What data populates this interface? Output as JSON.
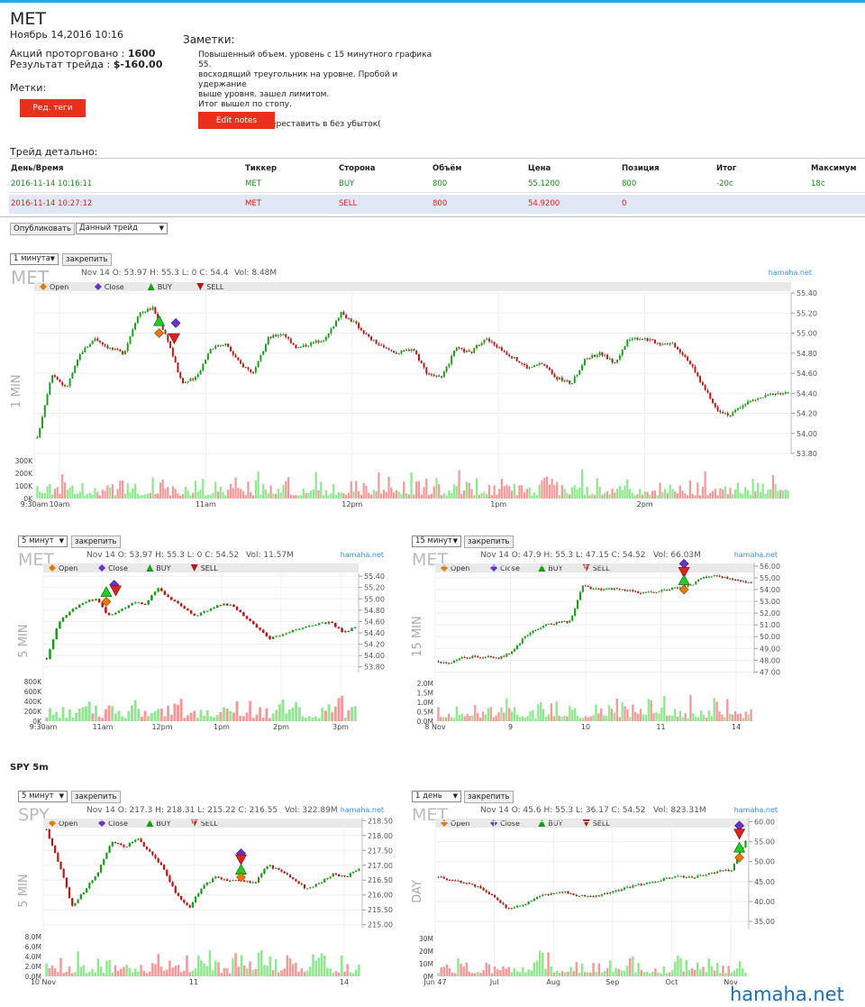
{
  "header": {
    "ticker": "MET",
    "date": "Ноябрь 14,2016 10:16",
    "shares_label": "Акций проторговано :",
    "shares_value": "1600",
    "result_label": "Результат трейда :",
    "result_value": "$-160.00",
    "tags_label": "Метки:",
    "tags_button": "Ред. теги"
  },
  "notes": {
    "title": "Заметки:",
    "lines": [
      "Повышенный объем. уровень с 15 минутного графика 55.",
      "восходящий треугольник на уровне. Пробой и удержание",
      "выше уровня. зашел лимитом.",
      "Итог вышел по стопу.",
      "",
      "Ошибка: забыл переставить в без убыток("
    ],
    "edit_button": "Edit notes"
  },
  "trade_detail": {
    "title": "Трейд детально:",
    "columns": [
      "День/Время",
      "Тиккер",
      "Сторона",
      "Объём",
      "Цена",
      "Позиция",
      "Итог",
      "Максимум"
    ],
    "rows": [
      [
        "2016-11-14 10:16:11",
        "MET",
        "BUY",
        "800",
        "55.1200",
        "800",
        "-20c",
        "18c"
      ],
      [
        "2016-11-14 10:27:12",
        "MET",
        "SELL",
        "800",
        "54.9200",
        "0",
        "",
        ""
      ]
    ]
  },
  "controls": {
    "publish_button": "Опубликовать",
    "trade_select": "Данный трейд",
    "pin_button": "закрепить"
  },
  "section_spy": "SPY 5m",
  "watermark": "hamaha.net",
  "colors": {
    "up": "#1a9b1a",
    "down": "#b51616",
    "vol_up": "#8fe88f",
    "vol_down": "#f29a9a",
    "buy_row": "#1a8a1a",
    "sell_row": "#e02020",
    "sell_bg": "#dfe8f4"
  },
  "chart_data": [
    {
      "type": "candlestick",
      "ticker": "MET",
      "timeframe_select": "1 минута",
      "side_label": "1 MIN",
      "ohlc_text": "Nov 14 O: 53.97 H: 55.3 L: 0 C: 54.4",
      "vol_text": "Vol: 8.48M",
      "source": "hamaha.net",
      "legend": [
        "Open",
        "Close",
        "BUY",
        "SELL"
      ],
      "y_ticks": [
        "55.40",
        "55.20",
        "55.00",
        "54.80",
        "54.60",
        "54.40",
        "54.20",
        "54.00",
        "53.80"
      ],
      "ylim": [
        53.8,
        55.4
      ],
      "vol_ticks": [
        "300K",
        "200K",
        "100K",
        "0K"
      ],
      "x_ticks": [
        "9:30am",
        "10am",
        "11am",
        "12pm",
        "1pm",
        "2pm"
      ],
      "path": [
        53.95,
        54.6,
        54.45,
        54.8,
        54.95,
        54.85,
        54.8,
        55.2,
        55.25,
        54.95,
        54.5,
        54.55,
        54.85,
        54.9,
        54.7,
        54.6,
        54.95,
        55.0,
        54.85,
        54.9,
        54.95,
        55.2,
        55.1,
        54.95,
        54.85,
        54.8,
        54.85,
        54.6,
        54.55,
        54.85,
        54.8,
        54.95,
        54.85,
        54.75,
        54.65,
        54.7,
        54.55,
        54.5,
        54.75,
        54.8,
        54.7,
        54.95,
        54.95,
        54.9,
        54.9,
        54.75,
        54.5,
        54.25,
        54.18,
        54.3,
        54.35,
        54.4,
        54.4
      ],
      "markers": [
        {
          "type": "buy",
          "x": 0.165,
          "price": 55.12
        },
        {
          "type": "open",
          "x": 0.165,
          "price": 55.0
        },
        {
          "type": "close",
          "x": 0.187,
          "price": 55.1
        },
        {
          "type": "sell",
          "x": 0.185,
          "price": 54.95
        }
      ]
    },
    {
      "type": "candlestick",
      "ticker": "MET",
      "timeframe_select": "5 минут",
      "side_label": "5 MIN",
      "ohlc_text": "Nov 14 O: 53.97 H: 55.3 L: 0 C: 54.52",
      "vol_text": "Vol: 11.57M",
      "source": "hamaha.net",
      "legend": [
        "Open",
        "Close",
        "BUY",
        "SELL"
      ],
      "y_ticks": [
        "55.40",
        "55.20",
        "55.00",
        "54.80",
        "54.60",
        "54.40",
        "54.20",
        "54.00",
        "53.80"
      ],
      "ylim": [
        53.7,
        55.45
      ],
      "vol_ticks": [
        "800K",
        "600K",
        "400K",
        "200K",
        "0K"
      ],
      "x_ticks": [
        "9:30am",
        "11am",
        "12pm",
        "1pm",
        "2pm",
        "3pm"
      ],
      "path": [
        53.95,
        54.6,
        54.8,
        54.95,
        55.0,
        54.7,
        54.8,
        54.95,
        54.9,
        55.2,
        55.0,
        54.85,
        54.7,
        54.8,
        54.9,
        54.9,
        54.7,
        54.5,
        54.3,
        54.35,
        54.45,
        54.5,
        54.55,
        54.6,
        54.4,
        54.5
      ],
      "markers": [
        {
          "type": "buy",
          "x": 0.2,
          "price": 55.12
        },
        {
          "type": "open",
          "x": 0.2,
          "price": 54.95
        },
        {
          "type": "close",
          "x": 0.225,
          "price": 55.25
        },
        {
          "type": "sell",
          "x": 0.23,
          "price": 55.15
        }
      ]
    },
    {
      "type": "candlestick",
      "ticker": "MET",
      "timeframe_select": "15 минут",
      "side_label": "15 MIN",
      "ohlc_text": "Nov 14 O: 47.9 H: 55.3 L: 47.15 C: 54.52",
      "vol_text": "Vol: 66.03M",
      "source": "hamaha.net",
      "legend": [
        "Open",
        "Close",
        "BUY",
        "SELL"
      ],
      "y_ticks": [
        "56.00",
        "55.00",
        "54.00",
        "53.00",
        "52.00",
        "51.00",
        "50.00",
        "49.00",
        "48.00",
        "47.00"
      ],
      "ylim": [
        46.8,
        56.3
      ],
      "vol_ticks": [
        "2.0M",
        "1.5M",
        "1.0M",
        "0.5M",
        "0.0M"
      ],
      "x_ticks": [
        "8 Nov",
        "9",
        "10",
        "11",
        "14"
      ],
      "path": [
        47.9,
        47.8,
        48.2,
        48.3,
        48.3,
        48.2,
        48.6,
        49.8,
        50.5,
        51.0,
        51.2,
        51.3,
        54.4,
        54.0,
        54.1,
        54.0,
        53.9,
        53.7,
        53.8,
        54.0,
        54.2,
        54.4,
        55.0,
        55.2,
        55.0,
        54.8,
        54.6
      ],
      "markers": [
        {
          "type": "close",
          "x": 0.78,
          "price": 56.2
        },
        {
          "type": "sell",
          "x": 0.78,
          "price": 55.5
        },
        {
          "type": "buy",
          "x": 0.78,
          "price": 54.8
        },
        {
          "type": "open",
          "x": 0.78,
          "price": 54.0
        }
      ]
    },
    {
      "type": "candlestick",
      "ticker": "SPY",
      "timeframe_select": "5 минут",
      "side_label": "5 MIN",
      "ohlc_text": "Nov 14 O: 217.3 H: 218.31 L: 215.22 C: 216.55",
      "vol_text": "Vol: 322.89M",
      "source": "hamaha.net",
      "legend": [
        "Open",
        "Close",
        "BUY",
        "SELL"
      ],
      "y_ticks": [
        "218.50",
        "218.00",
        "217.50",
        "217.00",
        "216.50",
        "216.00",
        "215.50",
        "215.00"
      ],
      "ylim": [
        214.9,
        218.6
      ],
      "vol_ticks": [
        "8.0M",
        "6.0M",
        "4.0M",
        "2.0M",
        "0.0M"
      ],
      "x_ticks": [
        "10 Nov",
        "11",
        "14"
      ],
      "path": [
        218.2,
        217.0,
        215.6,
        216.2,
        216.8,
        217.8,
        217.6,
        217.9,
        217.4,
        216.9,
        216.0,
        215.6,
        216.3,
        216.6,
        216.5,
        216.5,
        216.4,
        217.0,
        216.8,
        216.5,
        216.2,
        216.4,
        216.7,
        216.6,
        216.9
      ],
      "markers": [
        {
          "type": "close",
          "x": 0.62,
          "price": 217.4
        },
        {
          "type": "sell",
          "x": 0.62,
          "price": 217.2
        },
        {
          "type": "buy",
          "x": 0.62,
          "price": 216.85
        },
        {
          "type": "open",
          "x": 0.62,
          "price": 216.6
        }
      ]
    },
    {
      "type": "candlestick",
      "ticker": "MET",
      "timeframe_select": "1 день",
      "side_label": "DAY",
      "ohlc_text": "Nov 14 O: 45.6 H: 55.3 L: 36.17 C: 54.52",
      "vol_text": "Vol: 823.31M",
      "source": "hamaha.net",
      "legend": [
        "Open",
        "Close",
        "BUY",
        "SELL"
      ],
      "y_ticks": [
        "60.00",
        "55.00",
        "50.00",
        "45.00",
        "40.00",
        "35.00"
      ],
      "ylim": [
        33,
        61
      ],
      "vol_ticks": [
        "30M",
        "20M",
        "10M",
        "0M"
      ],
      "x_ticks": [
        "Jun 47",
        "Jul",
        "Aug",
        "Sep",
        "Oct",
        "Nov"
      ],
      "path": [
        46.0,
        45.5,
        44.5,
        43.5,
        41.0,
        38.0,
        39.0,
        41.0,
        42.0,
        42.5,
        41.5,
        41.0,
        42.0,
        43.0,
        44.0,
        44.5,
        45.5,
        46.5,
        46.0,
        46.5,
        47.5,
        48.0,
        55.0
      ],
      "markers": [
        {
          "type": "close",
          "x": 0.97,
          "price": 59.0
        },
        {
          "type": "sell",
          "x": 0.97,
          "price": 57.0
        },
        {
          "type": "buy",
          "x": 0.97,
          "price": 53.5
        },
        {
          "type": "open",
          "x": 0.97,
          "price": 51.0
        }
      ]
    }
  ]
}
